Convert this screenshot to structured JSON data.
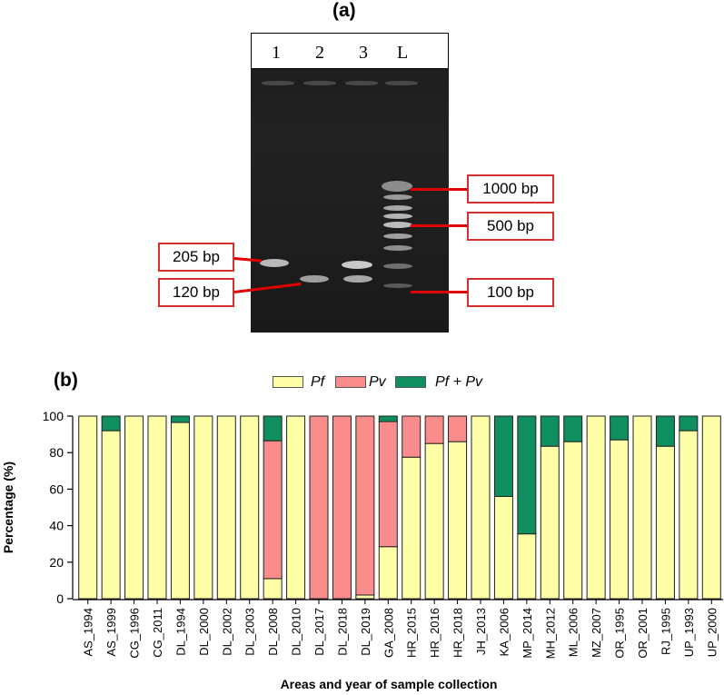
{
  "panel_a": {
    "label": "(a)",
    "lanes": [
      "1",
      "2",
      "3",
      "L"
    ],
    "markers": [
      {
        "text": "205 bp"
      },
      {
        "text": "120 bp"
      },
      {
        "text": "1000 bp"
      },
      {
        "text": "500 bp"
      },
      {
        "text": "100 bp"
      }
    ]
  },
  "panel_b": {
    "label": "(b)"
  },
  "chart_data": {
    "type": "bar",
    "stacked": true,
    "title": "",
    "xlabel": "Areas and year of sample collection",
    "ylabel": "Percentage (%)",
    "ylim": [
      0,
      100
    ],
    "yticks": [
      "0",
      "20",
      "40",
      "60",
      "80",
      "100"
    ],
    "legend_position": "top-center",
    "categories": [
      "AS_1994",
      "AS_1999",
      "CG_1996",
      "CG_2011",
      "DL_1994",
      "DL_2000",
      "DL_2002",
      "DL_2003",
      "DL_2008",
      "DL_2010",
      "DL_2017",
      "DL_2018",
      "DL_2019",
      "GA_2008",
      "HR_2015",
      "HR_2016",
      "HR_2018",
      "JH_2013",
      "KA_2006",
      "MP_2014",
      "MH_2012",
      "ML_2006",
      "MZ_2007",
      "OR_1995",
      "OR_2001",
      "RJ_1995",
      "UP_1993",
      "UP_2000"
    ],
    "series": [
      {
        "name": "Pf",
        "color": "#ffffa8",
        "values": [
          100,
          92,
          100,
          100,
          96.5,
          100,
          100,
          100,
          11,
          100,
          0,
          0,
          2,
          28.5,
          77.5,
          85,
          86,
          100,
          56,
          35.5,
          83.5,
          86,
          100,
          87,
          100,
          83.5,
          92,
          100
        ]
      },
      {
        "name": "Pv",
        "color": "#fa8c8c",
        "values": [
          0,
          0,
          0,
          0,
          0,
          0,
          0,
          0,
          75.5,
          0,
          100,
          100,
          98,
          68.5,
          22.5,
          15,
          14,
          0,
          0,
          0,
          0,
          0,
          0,
          0,
          0,
          0,
          0,
          0
        ]
      },
      {
        "name": "Pf + Pv",
        "color": "#0f8f5f",
        "values": [
          0,
          8,
          0,
          0,
          3.5,
          0,
          0,
          0,
          13.5,
          0,
          0,
          0,
          0,
          3,
          0,
          0,
          0,
          0,
          44,
          64.5,
          16.5,
          14,
          0,
          13,
          0,
          16.5,
          8,
          0
        ]
      }
    ]
  }
}
